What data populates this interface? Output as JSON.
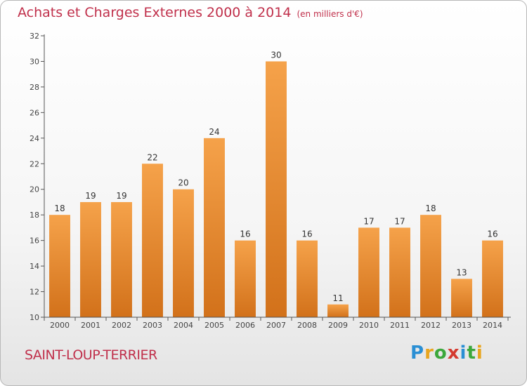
{
  "title": "Achats et Charges Externes 2000 à 2014",
  "unit": "(en milliers d'€)",
  "commune": "SAINT-LOUP-TERRIER",
  "logo": {
    "letters": [
      "P",
      "r",
      "o",
      "x",
      "i",
      "t",
      "i"
    ],
    "colors": [
      "#2a8fd4",
      "#e8a51e",
      "#3ca83c",
      "#d43a2f",
      "#2a8fd4",
      "#3ca83c",
      "#e8a51e"
    ]
  },
  "chart_data": {
    "type": "bar",
    "categories": [
      "2000",
      "2001",
      "2002",
      "2003",
      "2004",
      "2005",
      "2006",
      "2007",
      "2008",
      "2009",
      "2010",
      "2011",
      "2012",
      "2013",
      "2014"
    ],
    "values": [
      18,
      19,
      19,
      22,
      20,
      24,
      16,
      30,
      16,
      11,
      17,
      17,
      18,
      13,
      16
    ],
    "ylim": [
      10,
      32
    ],
    "yticks": [
      10,
      12,
      14,
      16,
      18,
      20,
      22,
      24,
      26,
      28,
      30,
      32
    ],
    "grid": false,
    "colors": {
      "bar_light": "#f5a24a",
      "bar_dark": "#d2711a",
      "axis": "#555555"
    }
  }
}
